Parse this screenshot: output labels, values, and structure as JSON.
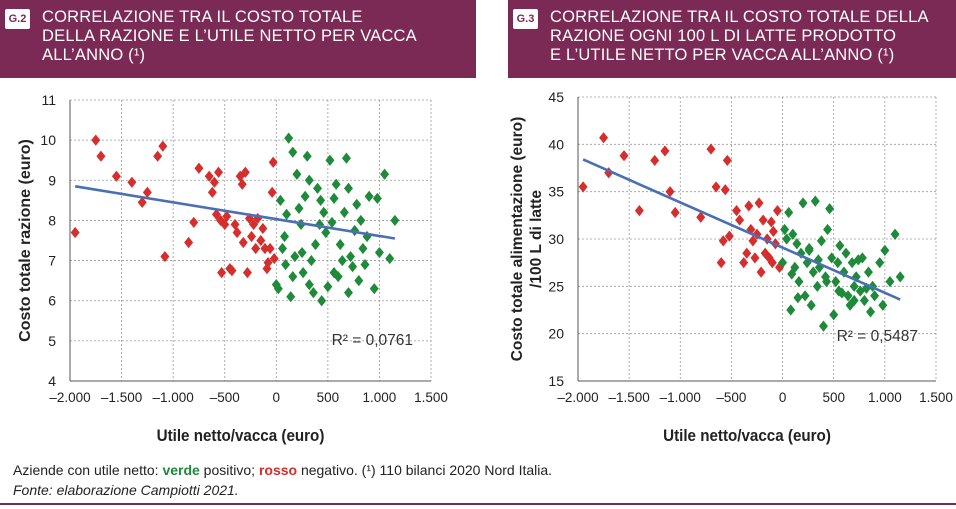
{
  "charts": [
    {
      "tag": "G.2",
      "title_lines": [
        "CORRELAZIONE TRA IL COSTO TOTALE",
        "DELLA RAZIONE E L’UTILE NETTO PER VACCA",
        "ALL’ANNO (¹)"
      ]
    },
    {
      "tag": "G.3",
      "title_lines": [
        "CORRELAZIONE TRA IL COSTO TOTALE DELLA",
        "RAZIONE OGNI 100 L DI LATTE PRODOTTO",
        "E L’UTILE NETTO PER VACCA ALL’ANNO (¹)"
      ]
    }
  ],
  "footer": {
    "prefix": "Aziende con utile netto: ",
    "green_word": "verde",
    "middle": " positivo; ",
    "red_word": "rosso",
    "suffix": " negativo. (¹) 110 bilanci 2020 Nord Italia.",
    "source": "Fonte: elaborazione Campiotti 2021."
  },
  "colors": {
    "header": "#7a2a55",
    "positive": "#1e8a3a",
    "negative": "#d62d2d",
    "trend": "#4a6fb5"
  },
  "chart_data": [
    {
      "type": "scatter",
      "title": "CORRELAZIONE TRA IL COSTO TOTALE DELLA RAZIONE E L’UTILE NETTO PER VACCA ALL’ANNO (¹)",
      "xlabel": "Utile netto/vacca (euro)",
      "ylabel": "Costo totale razione (euro)",
      "xlim": [
        -2000,
        1500
      ],
      "ylim": [
        4,
        11
      ],
      "xticks": [
        -2000,
        -1500,
        -1000,
        -500,
        0,
        500,
        1000,
        1500
      ],
      "xtick_labels": [
        "–2.000",
        "–1.500",
        "–1.000",
        "–500",
        "0",
        "500",
        "1.000",
        "1.500"
      ],
      "yticks": [
        4,
        5,
        6,
        7,
        8,
        9,
        10,
        11
      ],
      "ytick_labels": [
        "4",
        "5",
        "6",
        "7",
        "8",
        "9",
        "10",
        "11"
      ],
      "grid": true,
      "annotation": "R² = 0,0761",
      "trendline": {
        "x": [
          -1950,
          1150
        ],
        "y": [
          8.85,
          7.55
        ]
      },
      "points": [
        [
          -1950,
          7.7
        ],
        [
          -1750,
          10
        ],
        [
          -1700,
          9.6
        ],
        [
          -1550,
          9.1
        ],
        [
          -1400,
          8.95
        ],
        [
          -1300,
          8.45
        ],
        [
          -1250,
          8.7
        ],
        [
          -1150,
          9.6
        ],
        [
          -1100,
          9.85
        ],
        [
          -1080,
          7.1
        ],
        [
          -850,
          7.45
        ],
        [
          -800,
          7.95
        ],
        [
          -750,
          9.3
        ],
        [
          -650,
          9.1
        ],
        [
          -620,
          8.7
        ],
        [
          -600,
          8.95
        ],
        [
          -580,
          8.15
        ],
        [
          -560,
          9.2
        ],
        [
          -540,
          8.0
        ],
        [
          -530,
          6.7
        ],
        [
          -500,
          7.9
        ],
        [
          -480,
          8.1
        ],
        [
          -450,
          6.8
        ],
        [
          -430,
          6.75
        ],
        [
          -400,
          7.9
        ],
        [
          -380,
          7.7
        ],
        [
          -350,
          9.1
        ],
        [
          -330,
          8.9
        ],
        [
          -320,
          7.45
        ],
        [
          -300,
          9.2
        ],
        [
          -280,
          6.7
        ],
        [
          -260,
          8.05
        ],
        [
          -240,
          7.6
        ],
        [
          -220,
          7.9
        ],
        [
          -200,
          7.3
        ],
        [
          -180,
          8.05
        ],
        [
          -150,
          7.5
        ],
        [
          -130,
          7.8
        ],
        [
          -110,
          7.3
        ],
        [
          -90,
          6.8
        ],
        [
          -80,
          6.95
        ],
        [
          -60,
          7.3
        ],
        [
          -40,
          8.7
        ],
        [
          -20,
          7.05
        ],
        [
          0,
          6.4
        ],
        [
          20,
          6.3
        ],
        [
          40,
          8.5
        ],
        [
          60,
          7.3
        ],
        [
          80,
          7.6
        ],
        [
          100,
          8.15
        ],
        [
          120,
          10.05
        ],
        [
          140,
          6.1
        ],
        [
          160,
          9.7
        ],
        [
          180,
          7.1
        ],
        [
          200,
          9.15
        ],
        [
          220,
          8.3
        ],
        [
          240,
          7.9
        ],
        [
          260,
          6.7
        ],
        [
          280,
          8.6
        ],
        [
          300,
          9.6
        ],
        [
          320,
          6.4
        ],
        [
          340,
          7.0
        ],
        [
          360,
          6.2
        ],
        [
          380,
          7.4
        ],
        [
          400,
          8.8
        ],
        [
          420,
          7.9
        ],
        [
          440,
          6.0
        ],
        [
          460,
          8.2
        ],
        [
          480,
          7.7
        ],
        [
          500,
          6.35
        ],
        [
          520,
          9.5
        ],
        [
          540,
          7.95
        ],
        [
          560,
          8.55
        ],
        [
          580,
          8.9
        ],
        [
          600,
          6.6
        ],
        [
          620,
          7.4
        ],
        [
          640,
          7.0
        ],
        [
          660,
          8.2
        ],
        [
          680,
          9.55
        ],
        [
          700,
          8.8
        ],
        [
          720,
          7.1
        ],
        [
          740,
          6.85
        ],
        [
          760,
          7.75
        ],
        [
          780,
          8.4
        ],
        [
          800,
          6.5
        ],
        [
          820,
          8.0
        ],
        [
          840,
          7.3
        ],
        [
          860,
          6.9
        ],
        [
          880,
          7.6
        ],
        [
          900,
          8.6
        ],
        [
          950,
          6.3
        ],
        [
          980,
          8.55
        ],
        [
          1000,
          7.2
        ],
        [
          1050,
          9.15
        ],
        [
          1100,
          7.05
        ],
        [
          1150,
          8.0
        ],
        [
          -30,
          9.45
        ],
        [
          160,
          6.6
        ],
        [
          320,
          9.0
        ],
        [
          560,
          6.7
        ],
        [
          250,
          7.2
        ],
        [
          90,
          6.9
        ],
        [
          430,
          8.5
        ],
        [
          700,
          6.2
        ]
      ]
    },
    {
      "type": "scatter",
      "title": "CORRELAZIONE TRA IL COSTO TOTALE DELLA RAZIONE OGNI 100 L DI LATTE PRODOTTO E L’UTILE NETTO PER VACCA ALL’ANNO (¹)",
      "xlabel": "Utile netto/vacca (euro)",
      "ylabel_lines": [
        "Costo totale alimentazione (euro)",
        "/100 L di latte"
      ],
      "xlim": [
        -2000,
        1500
      ],
      "ylim": [
        15,
        45
      ],
      "xticks": [
        -2000,
        -1500,
        -1000,
        -500,
        0,
        500,
        1000,
        1500
      ],
      "xtick_labels": [
        "–2.000",
        "–1.500",
        "–1.000",
        "–500",
        "0",
        "500",
        "1.000",
        "1.500"
      ],
      "yticks": [
        15,
        20,
        25,
        30,
        35,
        40,
        45
      ],
      "ytick_labels": [
        "15",
        "20",
        "25",
        "30",
        "35",
        "40",
        "45"
      ],
      "grid": true,
      "annotation": "R² = 0,5487",
      "trendline": {
        "x": [
          -1950,
          1150
        ],
        "y": [
          38.4,
          23.6
        ]
      },
      "points": [
        [
          -1950,
          35.5
        ],
        [
          -1750,
          40.7
        ],
        [
          -1700,
          37
        ],
        [
          -1550,
          38.8
        ],
        [
          -1400,
          33
        ],
        [
          -1250,
          38.3
        ],
        [
          -1150,
          39.3
        ],
        [
          -1100,
          35
        ],
        [
          -1050,
          32.8
        ],
        [
          -800,
          32.3
        ],
        [
          -700,
          39.5
        ],
        [
          -650,
          35.5
        ],
        [
          -600,
          27.5
        ],
        [
          -580,
          29.8
        ],
        [
          -560,
          35.2
        ],
        [
          -540,
          38.3
        ],
        [
          -520,
          30.3
        ],
        [
          -450,
          33
        ],
        [
          -420,
          32
        ],
        [
          -380,
          27.5
        ],
        [
          -350,
          28.5
        ],
        [
          -330,
          33.5
        ],
        [
          -310,
          31
        ],
        [
          -290,
          29.8
        ],
        [
          -270,
          28
        ],
        [
          -250,
          30.5
        ],
        [
          -230,
          33.8
        ],
        [
          -210,
          26.5
        ],
        [
          -190,
          32
        ],
        [
          -170,
          28.5
        ],
        [
          -150,
          30
        ],
        [
          -130,
          28
        ],
        [
          -110,
          31.8
        ],
        [
          -90,
          30.8
        ],
        [
          -70,
          29.5
        ],
        [
          -50,
          33
        ],
        [
          -30,
          27
        ],
        [
          0,
          27.5
        ],
        [
          20,
          31
        ],
        [
          40,
          30
        ],
        [
          60,
          32.8
        ],
        [
          80,
          22.5
        ],
        [
          100,
          30.5
        ],
        [
          120,
          27
        ],
        [
          140,
          29.5
        ],
        [
          160,
          25.5
        ],
        [
          180,
          28.5
        ],
        [
          200,
          33.8
        ],
        [
          220,
          24
        ],
        [
          240,
          27.5
        ],
        [
          260,
          28.8
        ],
        [
          280,
          23
        ],
        [
          300,
          26.5
        ],
        [
          320,
          34
        ],
        [
          340,
          25
        ],
        [
          360,
          27
        ],
        [
          380,
          29.8
        ],
        [
          400,
          20.8
        ],
        [
          420,
          26
        ],
        [
          440,
          31
        ],
        [
          460,
          33.2
        ],
        [
          480,
          28
        ],
        [
          500,
          22
        ],
        [
          520,
          25.5
        ],
        [
          540,
          27.5
        ],
        [
          560,
          29.3
        ],
        [
          580,
          24.3
        ],
        [
          600,
          26.5
        ],
        [
          620,
          28.5
        ],
        [
          640,
          24
        ],
        [
          660,
          23
        ],
        [
          680,
          27.5
        ],
        [
          700,
          25
        ],
        [
          720,
          26
        ],
        [
          740,
          27.8
        ],
        [
          760,
          24.5
        ],
        [
          780,
          28
        ],
        [
          800,
          23.5
        ],
        [
          820,
          24.8
        ],
        [
          840,
          26.5
        ],
        [
          860,
          22.3
        ],
        [
          880,
          25
        ],
        [
          900,
          24
        ],
        [
          950,
          27.5
        ],
        [
          980,
          23
        ],
        [
          1000,
          28.8
        ],
        [
          1050,
          25.5
        ],
        [
          1100,
          30.5
        ],
        [
          1150,
          26
        ],
        [
          -100,
          27.5
        ],
        [
          150,
          23.8
        ],
        [
          350,
          27.8
        ],
        [
          550,
          24.5
        ],
        [
          260,
          29
        ],
        [
          90,
          26.3
        ],
        [
          430,
          25.5
        ],
        [
          700,
          23.5
        ]
      ]
    }
  ]
}
